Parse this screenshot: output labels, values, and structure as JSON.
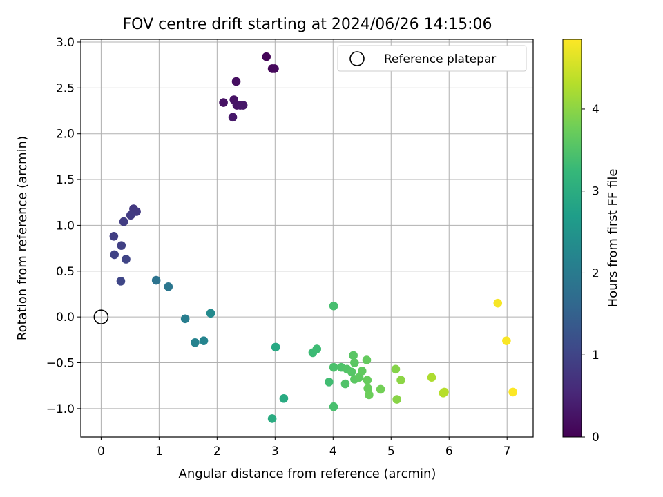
{
  "chart_data": {
    "type": "scatter",
    "title": "FOV centre drift starting at 2024/06/26 14:15:06",
    "xlabel": "Angular distance from reference (arcmin)",
    "ylabel": "Rotation from reference (arcmin)",
    "colorbar_label": "Hours from first FF file",
    "xlim": [
      -0.35,
      7.45
    ],
    "ylim": [
      -1.31,
      3.03
    ],
    "clim": [
      0,
      4.85
    ],
    "xticks": [
      0,
      1,
      2,
      3,
      4,
      5,
      6,
      7
    ],
    "xtick_labels": [
      "0",
      "1",
      "2",
      "3",
      "4",
      "5",
      "6",
      "7"
    ],
    "yticks": [
      -1.0,
      -0.5,
      0.0,
      0.5,
      1.0,
      1.5,
      2.0,
      2.5,
      3.0
    ],
    "ytick_labels": [
      "−1.0",
      "−0.5",
      "0.0",
      "0.5",
      "1.0",
      "1.5",
      "2.0",
      "2.5",
      "3.0"
    ],
    "cticks": [
      0,
      1,
      2,
      3,
      4
    ],
    "ctick_labels": [
      "0",
      "1",
      "2",
      "3",
      "4"
    ],
    "grid": true,
    "colormap": "viridis",
    "legend": {
      "placement": "top-right",
      "label": "Reference platepar"
    },
    "reference_point": {
      "x": 0,
      "y": 0
    },
    "points": [
      {
        "x": 2.85,
        "y": 2.84,
        "t": 0.05
      },
      {
        "x": 2.95,
        "y": 2.71,
        "t": 0.08
      },
      {
        "x": 2.99,
        "y": 2.71,
        "t": 0.1
      },
      {
        "x": 2.33,
        "y": 2.57,
        "t": 0.18
      },
      {
        "x": 2.11,
        "y": 2.34,
        "t": 0.22
      },
      {
        "x": 2.29,
        "y": 2.37,
        "t": 0.24
      },
      {
        "x": 2.34,
        "y": 2.31,
        "t": 0.26
      },
      {
        "x": 2.4,
        "y": 2.31,
        "t": 0.28
      },
      {
        "x": 2.45,
        "y": 2.31,
        "t": 0.3
      },
      {
        "x": 2.27,
        "y": 2.18,
        "t": 0.32
      },
      {
        "x": 0.56,
        "y": 1.18,
        "t": 0.8
      },
      {
        "x": 0.61,
        "y": 1.15,
        "t": 0.82
      },
      {
        "x": 0.51,
        "y": 1.11,
        "t": 0.85
      },
      {
        "x": 0.39,
        "y": 1.04,
        "t": 0.88
      },
      {
        "x": 0.22,
        "y": 0.88,
        "t": 0.9
      },
      {
        "x": 0.35,
        "y": 0.78,
        "t": 0.93
      },
      {
        "x": 0.23,
        "y": 0.68,
        "t": 0.96
      },
      {
        "x": 0.43,
        "y": 0.63,
        "t": 0.99
      },
      {
        "x": 0.34,
        "y": 0.39,
        "t": 1.03
      },
      {
        "x": 0.95,
        "y": 0.4,
        "t": 1.85
      },
      {
        "x": 1.16,
        "y": 0.33,
        "t": 1.9
      },
      {
        "x": 1.45,
        "y": -0.02,
        "t": 2.05
      },
      {
        "x": 1.62,
        "y": -0.28,
        "t": 2.15
      },
      {
        "x": 1.77,
        "y": -0.26,
        "t": 2.2
      },
      {
        "x": 1.89,
        "y": 0.04,
        "t": 2.3
      },
      {
        "x": 3.01,
        "y": -0.33,
        "t": 2.9
      },
      {
        "x": 3.15,
        "y": -0.89,
        "t": 2.95
      },
      {
        "x": 2.95,
        "y": -1.11,
        "t": 2.98
      },
      {
        "x": 3.65,
        "y": -0.39,
        "t": 3.3
      },
      {
        "x": 3.72,
        "y": -0.35,
        "t": 3.32
      },
      {
        "x": 3.93,
        "y": -0.71,
        "t": 3.35
      },
      {
        "x": 4.01,
        "y": 0.12,
        "t": 3.4
      },
      {
        "x": 4.01,
        "y": -0.98,
        "t": 3.42
      },
      {
        "x": 4.01,
        "y": -0.55,
        "t": 3.44
      },
      {
        "x": 4.14,
        "y": -0.55,
        "t": 3.48
      },
      {
        "x": 4.21,
        "y": -0.73,
        "t": 3.5
      },
      {
        "x": 4.24,
        "y": -0.57,
        "t": 3.52
      },
      {
        "x": 4.32,
        "y": -0.6,
        "t": 3.55
      },
      {
        "x": 4.35,
        "y": -0.42,
        "t": 3.57
      },
      {
        "x": 4.37,
        "y": -0.5,
        "t": 3.59
      },
      {
        "x": 4.37,
        "y": -0.68,
        "t": 3.6
      },
      {
        "x": 4.45,
        "y": -0.66,
        "t": 3.63
      },
      {
        "x": 4.5,
        "y": -0.59,
        "t": 3.65
      },
      {
        "x": 4.58,
        "y": -0.47,
        "t": 3.68
      },
      {
        "x": 4.59,
        "y": -0.69,
        "t": 3.7
      },
      {
        "x": 4.6,
        "y": -0.78,
        "t": 3.72
      },
      {
        "x": 4.62,
        "y": -0.85,
        "t": 3.74
      },
      {
        "x": 4.82,
        "y": -0.79,
        "t": 3.8
      },
      {
        "x": 5.08,
        "y": -0.57,
        "t": 3.95
      },
      {
        "x": 5.1,
        "y": -0.9,
        "t": 3.97
      },
      {
        "x": 5.17,
        "y": -0.69,
        "t": 4.0
      },
      {
        "x": 5.7,
        "y": -0.66,
        "t": 4.25
      },
      {
        "x": 5.9,
        "y": -0.83,
        "t": 4.3
      },
      {
        "x": 5.92,
        "y": -0.82,
        "t": 4.32
      },
      {
        "x": 6.84,
        "y": 0.15,
        "t": 4.8
      },
      {
        "x": 6.99,
        "y": -0.26,
        "t": 4.82
      },
      {
        "x": 7.1,
        "y": -0.82,
        "t": 4.84
      }
    ]
  }
}
